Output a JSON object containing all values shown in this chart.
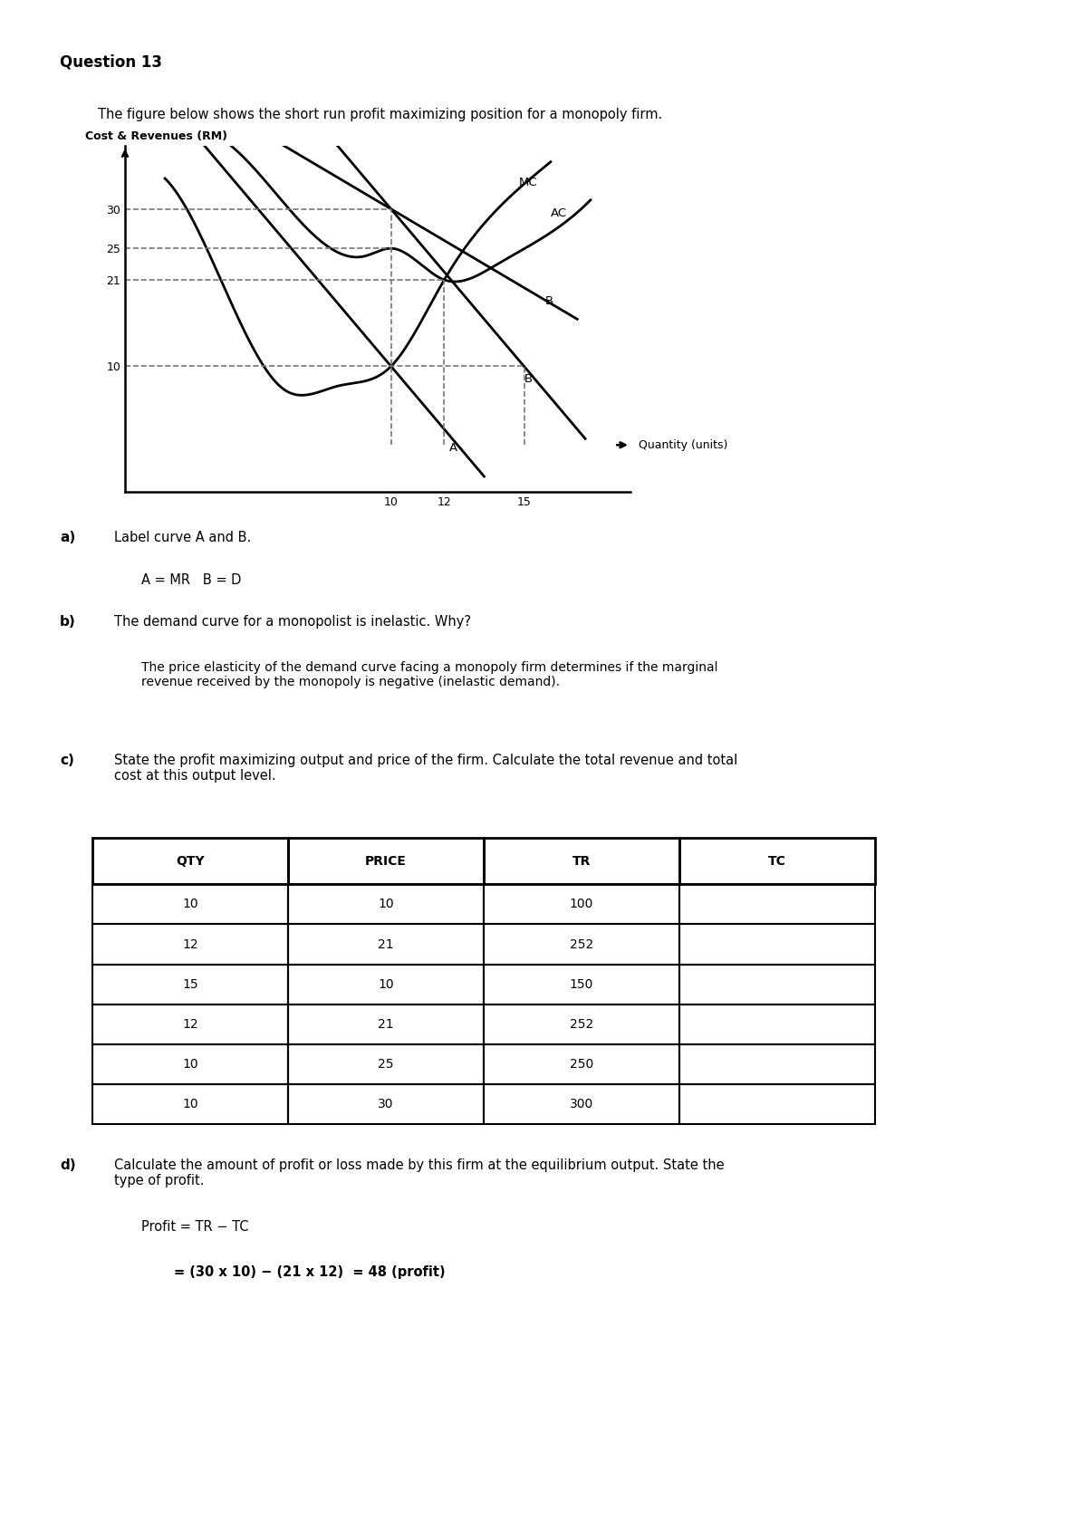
{
  "title": "Question 13",
  "intro_text": "The figure below shows the short run profit maximizing position for a monopoly firm.",
  "graph_ylabel": "Cost & Revenues (RM)",
  "graph_xlabel": "Quantity (units)",
  "yticks": [
    10,
    21,
    25,
    30
  ],
  "xticks": [
    10,
    12,
    15
  ],
  "part_a_label": "a)",
  "part_a_text": "Label curve A and B.",
  "part_a_answer": "A = MR   B = D",
  "part_b_label": "b)",
  "part_b_question": "The demand curve for a monopolist is inelastic. Why?",
  "part_b_answer": "The price elasticity of the demand curve facing a monopoly firm determines if the marginal\nrevenue received by the monopoly is negative (inelastic demand).",
  "part_c_label": "c)",
  "part_c_text": "State the profit maximizing output and price of the firm. Calculate the total revenue and total\ncost at this output level.",
  "table_headers": [
    "QTY",
    "PRICE",
    "TR",
    "TC"
  ],
  "table_rows": [
    [
      "10",
      "10",
      "100",
      ""
    ],
    [
      "12",
      "21",
      "252",
      ""
    ],
    [
      "15",
      "10",
      "150",
      ""
    ],
    [
      "12",
      "21",
      "252",
      ""
    ],
    [
      "10",
      "25",
      "250",
      ""
    ],
    [
      "10",
      "30",
      "300",
      ""
    ]
  ],
  "part_d_label": "d)",
  "part_d_text": "Calculate the amount of profit or loss made by this firm at the equilibrium output. State the\ntype of profit.",
  "part_d_line1": "Profit = TR − TC",
  "part_d_line2": "= (30 x 10) − (21 x 12)  = 48 (profit)",
  "bg_color": "#ffffff",
  "text_color": "#000000"
}
